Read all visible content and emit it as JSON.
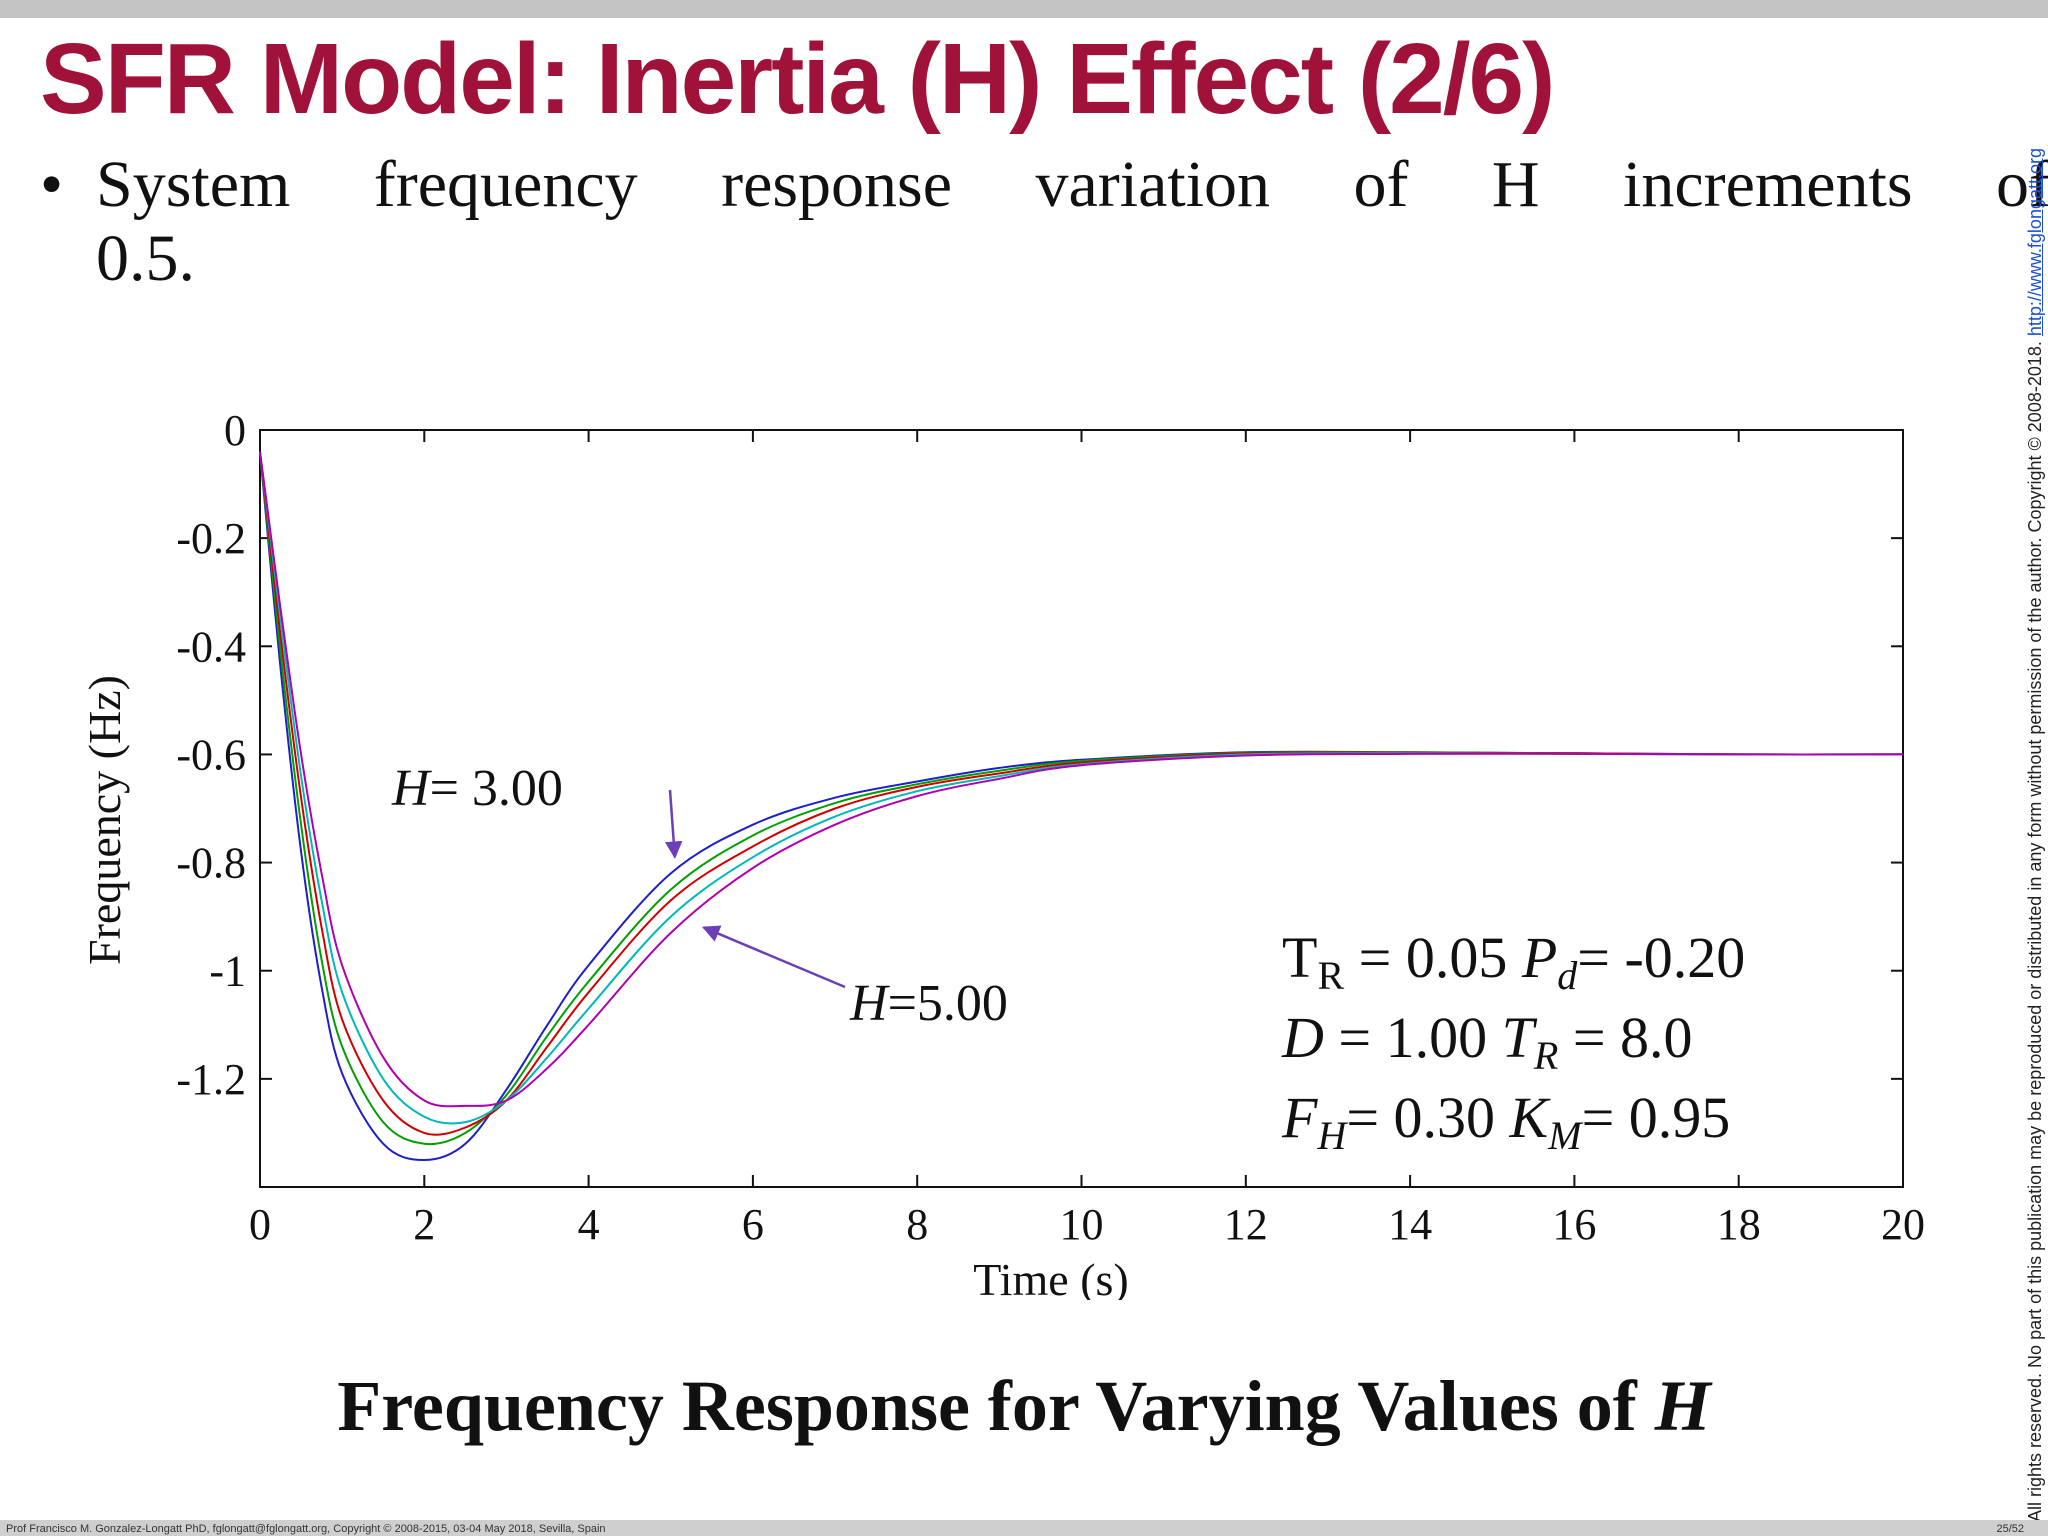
{
  "slide": {
    "title": "SFR Model: Inertia (H) Effect (2/6)",
    "bullet": {
      "symbol": "•",
      "line1": "System frequency response variation of H increments of",
      "line2": "0.5."
    },
    "caption": {
      "text": "Frequency Response for Varying Values of ",
      "var": "H"
    },
    "side_note": {
      "text": "All rights reserved. No part of this publication may be reproduced or distributed in any form without permission of the author. Copyright © 2008-2018. ",
      "link": "http://www.fglongatt.org"
    },
    "footer": {
      "text": "Prof Francisco M. Gonzalez-Longatt PhD, fglongatt@fglongatt.org, Copyright © 2008-2015, 03-04 May 2018, Sevilla, Spain",
      "page": "25/52"
    }
  },
  "chart_data": {
    "type": "line",
    "title": "",
    "xlabel": "Time (s)",
    "ylabel": "Frequency (Hz)",
    "xlim": [
      0,
      20
    ],
    "ylim": [
      -1.4,
      0
    ],
    "xticks": [
      0,
      2,
      4,
      6,
      8,
      10,
      12,
      14,
      16,
      18,
      20
    ],
    "yticks": [
      0,
      -0.2,
      -0.4,
      -0.6,
      -0.8,
      -1,
      -1.2
    ],
    "ytick_labels": [
      "0",
      "-0.2",
      "-0.4",
      "-0.6",
      "-0.8",
      "-1",
      "-1.2"
    ],
    "grid": false,
    "x": [
      0,
      0.25,
      0.5,
      0.75,
      1,
      1.5,
      2,
      2.5,
      3,
      3.5,
      4,
      5,
      6,
      7,
      8,
      9,
      10,
      12,
      14,
      16,
      18,
      20
    ],
    "series": [
      {
        "color": "#1f1fc8",
        "values": [
          -0.04,
          -0.44,
          -0.78,
          -1.03,
          -1.19,
          -1.32,
          -1.35,
          -1.32,
          -1.22,
          -1.1,
          -0.99,
          -0.82,
          -0.73,
          -0.68,
          -0.65,
          -0.625,
          -0.61,
          -0.596,
          -0.596,
          -0.598,
          -0.6,
          -0.6
        ]
      },
      {
        "color": "#00a000",
        "values": [
          -0.04,
          -0.41,
          -0.73,
          -0.98,
          -1.14,
          -1.28,
          -1.32,
          -1.3,
          -1.23,
          -1.12,
          -1.02,
          -0.85,
          -0.75,
          -0.69,
          -0.655,
          -0.63,
          -0.612,
          -0.597,
          -0.596,
          -0.598,
          -0.6,
          -0.6
        ]
      },
      {
        "color": "#d00000",
        "values": [
          -0.04,
          -0.38,
          -0.68,
          -0.92,
          -1.09,
          -1.24,
          -1.3,
          -1.29,
          -1.24,
          -1.14,
          -1.04,
          -0.87,
          -0.77,
          -0.7,
          -0.66,
          -0.635,
          -0.615,
          -0.598,
          -0.597,
          -0.598,
          -0.6,
          -0.6
        ]
      },
      {
        "color": "#00b8b8",
        "values": [
          -0.04,
          -0.35,
          -0.64,
          -0.87,
          -1.04,
          -1.2,
          -1.27,
          -1.28,
          -1.24,
          -1.16,
          -1.07,
          -0.9,
          -0.79,
          -0.715,
          -0.668,
          -0.64,
          -0.618,
          -0.6,
          -0.598,
          -0.599,
          -0.6,
          -0.6
        ]
      },
      {
        "color": "#b000b0",
        "values": [
          -0.04,
          -0.33,
          -0.6,
          -0.82,
          -0.99,
          -1.16,
          -1.24,
          -1.25,
          -1.24,
          -1.18,
          -1.1,
          -0.93,
          -0.81,
          -0.73,
          -0.677,
          -0.645,
          -0.62,
          -0.602,
          -0.599,
          -0.599,
          -0.6,
          -0.6
        ]
      }
    ],
    "annotations": [
      {
        "text": "H= 3.00",
        "var": "H",
        "rest": "= 3.00",
        "arrow_to": [
          5.05,
          -0.79
        ]
      },
      {
        "text": "H=5.00",
        "var": "H",
        "rest": "=5.00",
        "arrow_to": [
          5.4,
          -0.92
        ]
      }
    ],
    "parameters": [
      {
        "parts": [
          "T",
          "R",
          " = 0.05  ",
          "P",
          "d",
          "= -0.20"
        ]
      },
      {
        "parts": [
          "D",
          "",
          " = 1.00  ",
          "T",
          "R",
          " = 8.0"
        ]
      },
      {
        "parts": [
          "F",
          "H",
          "= 0.30 ",
          "K",
          "M",
          "= 0.95"
        ]
      }
    ],
    "arrow_color": "#6a3fb8"
  }
}
